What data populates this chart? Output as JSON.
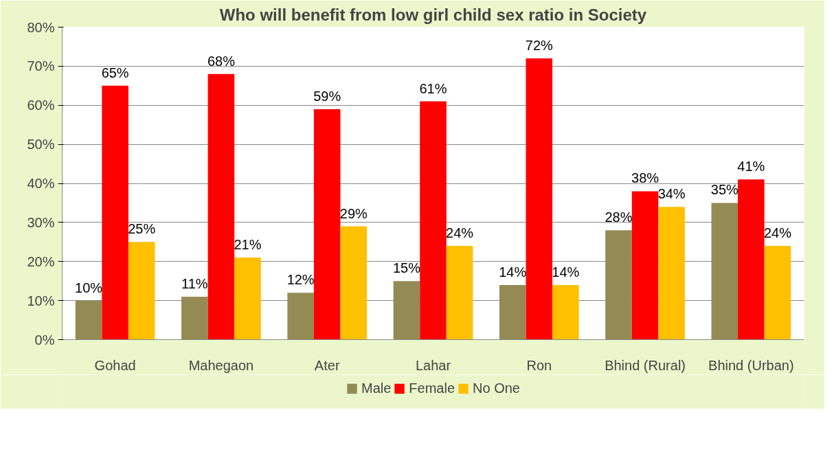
{
  "chart_data": {
    "type": "bar",
    "title": "Who will benefit from low girl child sex ratio in Society",
    "categories": [
      "Gohad",
      "Mahegaon",
      "Ater",
      "Lahar",
      "Ron",
      "Bhind (Rural)",
      "Bhind (Urban)"
    ],
    "series": [
      {
        "name": "Male",
        "color": "#948a54",
        "values": [
          10,
          11,
          12,
          15,
          14,
          28,
          35
        ],
        "value_labels": [
          "10%",
          "11%",
          "12%",
          "15%",
          "14%",
          "28%",
          "35%"
        ]
      },
      {
        "name": "Female",
        "color": "#ff0000",
        "values": [
          65,
          68,
          59,
          61,
          72,
          38,
          41
        ],
        "value_labels": [
          "65%",
          "68%",
          "59%",
          "61%",
          "72%",
          "38%",
          "41%"
        ]
      },
      {
        "name": "No One",
        "color": "#ffc000",
        "values": [
          25,
          21,
          29,
          24,
          14,
          34,
          24
        ],
        "value_labels": [
          "25%",
          "21%",
          "29%",
          "24%",
          "14%",
          "34%",
          "24%"
        ]
      }
    ],
    "ylim": [
      0,
      80
    ],
    "yticks": [
      {
        "value": 0,
        "label": "0%"
      },
      {
        "value": 10,
        "label": "10%"
      },
      {
        "value": 20,
        "label": "20%"
      },
      {
        "value": 30,
        "label": "30%"
      },
      {
        "value": 40,
        "label": "40%"
      },
      {
        "value": 50,
        "label": "50%"
      },
      {
        "value": 60,
        "label": "60%"
      },
      {
        "value": 70,
        "label": "70%"
      },
      {
        "value": 80,
        "label": "80%"
      }
    ],
    "grid": "y",
    "legend": "bottom"
  }
}
